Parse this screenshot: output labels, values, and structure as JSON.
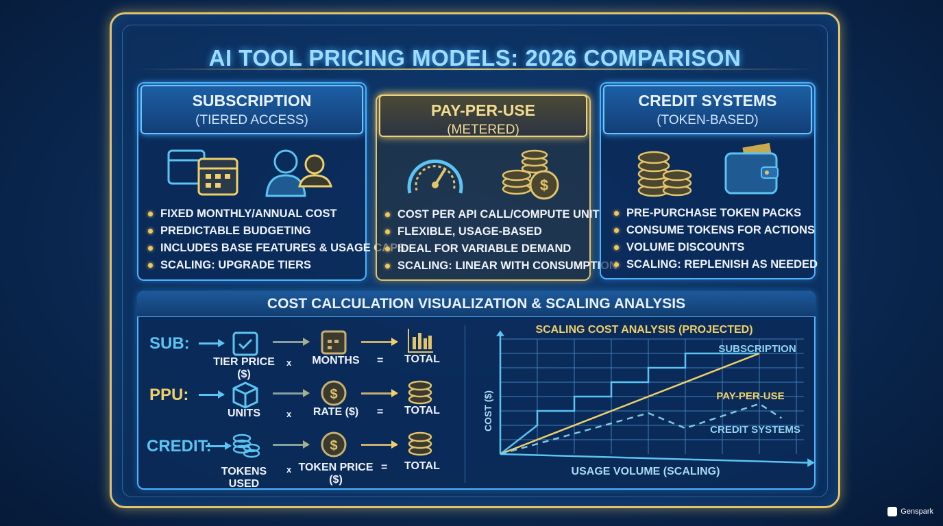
{
  "title": "AI TOOL PRICING MODELS: 2026 COMPARISON",
  "cards": [
    {
      "heading": "SUBSCRIPTION",
      "sub": "(TIERED ACCESS)",
      "icons": [
        "calendar-icon",
        "users-icon"
      ],
      "bullets": [
        "FIXED MONTHLY/ANNUAL COST",
        "PREDICTABLE BUDGETING",
        "INCLUDES BASE FEATURES & USAGE CAPS",
        "SCALING: UPGRADE TIERS"
      ]
    },
    {
      "heading": "PAY-PER-USE",
      "sub": "(METERED)",
      "icons": [
        "speedometer-icon",
        "coins-icon"
      ],
      "bullets": [
        "COST PER API CALL/COMPUTE UNIT",
        "FLEXIBLE, USAGE-BASED",
        "IDEAL FOR VARIABLE DEMAND",
        "SCALING: LINEAR WITH CONSUMPTION"
      ]
    },
    {
      "heading": "CREDIT SYSTEMS",
      "sub": "(TOKEN-BASED)",
      "icons": [
        "coin-stack-icon",
        "wallet-icon"
      ],
      "bullets": [
        "PRE-PURCHASE TOKEN PACKS",
        "CONSUME TOKENS FOR ACTIONS",
        "VOLUME DISCOUNTS",
        "SCALING: REPLENISH AS NEEDED"
      ]
    }
  ],
  "panel": {
    "heading": "COST CALCULATION VISUALIZATION & SCALING ANALYSIS",
    "formulas": [
      {
        "label": "SUB:",
        "a": "TIER PRICE ($)",
        "op": "x",
        "b": "MONTHS",
        "eq": "=",
        "result": "TOTAL"
      },
      {
        "label": "PPU:",
        "a": "UNITS",
        "op": "x",
        "b": "RATE ($)",
        "eq": "=",
        "result": "TOTAL"
      },
      {
        "label": "CREDIT:",
        "a": "TOKENS USED",
        "op": "x",
        "b": "TOKEN PRICE ($)",
        "eq": "=",
        "result": "TOTAL"
      }
    ]
  },
  "colors": {
    "accent_blue": "#4fb3ff",
    "accent_gold": "#e3c46a",
    "sub_line": "#5cc4f2",
    "ppu_line": "#efd06a",
    "credit_line": "#7fc9e0"
  },
  "chart_data": {
    "type": "line",
    "title": "SCALING COST ANALYSIS (PROJECTED)",
    "xlabel": "USAGE VOLUME (SCALING)",
    "ylabel": "COST ($)",
    "grid": true,
    "xlim": [
      0,
      8
    ],
    "ylim": [
      0,
      8
    ],
    "series": [
      {
        "name": "SUBSCRIPTION",
        "style": "step",
        "points": [
          [
            0,
            0
          ],
          [
            1,
            2
          ],
          [
            1,
            3
          ],
          [
            2,
            3
          ],
          [
            2,
            4
          ],
          [
            3,
            4
          ],
          [
            3,
            5
          ],
          [
            4,
            5
          ],
          [
            4,
            6
          ],
          [
            5,
            6
          ],
          [
            5,
            7
          ],
          [
            7,
            7
          ]
        ]
      },
      {
        "name": "PAY-PER-USE",
        "style": "solid",
        "points": [
          [
            0,
            0
          ],
          [
            7,
            7
          ]
        ]
      },
      {
        "name": "CREDIT SYSTEMS",
        "style": "dashed",
        "points": [
          [
            0,
            0
          ],
          [
            4,
            2.85
          ],
          [
            5,
            1.8
          ],
          [
            7,
            3.5
          ],
          [
            7.6,
            2.5
          ]
        ]
      }
    ]
  },
  "watermark": "Genspark"
}
